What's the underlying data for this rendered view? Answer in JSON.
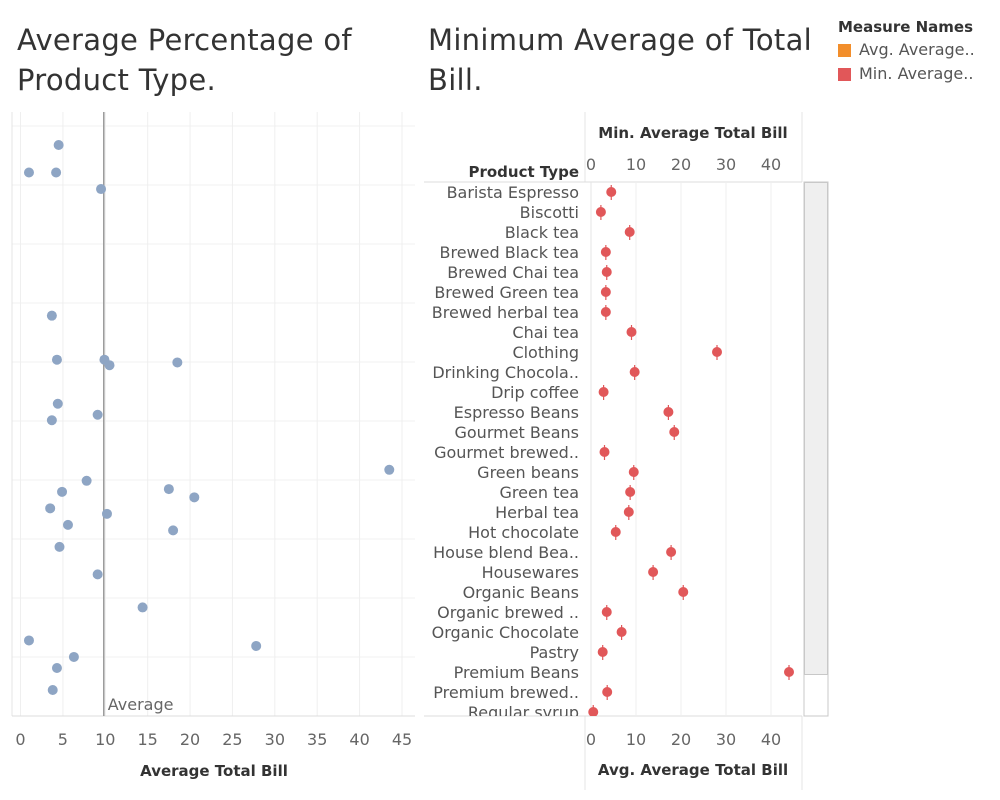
{
  "left_title": "Average Percentage of Product Type.",
  "right_title": "Minimum Average of Total Bill.",
  "legend": {
    "title": "Measure Names",
    "items": [
      {
        "label": "Avg. Average..",
        "color": "#f28e2b"
      },
      {
        "label": "Min. Average..",
        "color": "#e15759"
      }
    ]
  },
  "chart_data": [
    {
      "type": "scatter",
      "title": "Average Percentage of Product Type.",
      "xlabel": "Average Total Bill",
      "xlim": [
        0,
        46
      ],
      "xticks": [
        0,
        5,
        10,
        15,
        20,
        25,
        30,
        35,
        40,
        45
      ],
      "reference_line": {
        "label": "Average",
        "value": 10
      },
      "color": "#8ea5c4",
      "points": [
        {
          "x": 4.5,
          "y": 0.05
        },
        {
          "x": 1.0,
          "y": 0.1
        },
        {
          "x": 4.2,
          "y": 0.1
        },
        {
          "x": 9.5,
          "y": 0.13
        },
        {
          "x": 3.7,
          "y": 0.36
        },
        {
          "x": 4.3,
          "y": 0.44
        },
        {
          "x": 9.9,
          "y": 0.44
        },
        {
          "x": 10.5,
          "y": 0.45
        },
        {
          "x": 18.5,
          "y": 0.445
        },
        {
          "x": 4.4,
          "y": 0.52
        },
        {
          "x": 3.7,
          "y": 0.55
        },
        {
          "x": 9.1,
          "y": 0.54
        },
        {
          "x": 43.5,
          "y": 0.64
        },
        {
          "x": 7.8,
          "y": 0.66
        },
        {
          "x": 4.9,
          "y": 0.68
        },
        {
          "x": 17.5,
          "y": 0.675
        },
        {
          "x": 20.5,
          "y": 0.69
        },
        {
          "x": 3.5,
          "y": 0.71
        },
        {
          "x": 10.2,
          "y": 0.72
        },
        {
          "x": 5.6,
          "y": 0.74
        },
        {
          "x": 18.0,
          "y": 0.75
        },
        {
          "x": 4.6,
          "y": 0.78
        },
        {
          "x": 9.1,
          "y": 0.83
        },
        {
          "x": 14.4,
          "y": 0.89
        },
        {
          "x": 1.0,
          "y": 0.95
        },
        {
          "x": 6.3,
          "y": 0.98
        },
        {
          "x": 27.8,
          "y": 0.96
        },
        {
          "x": 4.3,
          "y": 1.0
        },
        {
          "x": 3.8,
          "y": 1.04
        }
      ]
    },
    {
      "type": "scatter",
      "title": "Minimum Average of Total Bill.",
      "ylabel": "Product Type",
      "x_top_label": "Min. Average Total Bill",
      "x_bottom_label": "Avg. Average Total Bill",
      "xlim": [
        0,
        46
      ],
      "xticks": [
        0,
        10,
        20,
        30,
        40
      ],
      "color": "#e15759",
      "categories": [
        "Barista Espresso",
        "Biscotti",
        "Black tea",
        "Brewed Black tea",
        "Brewed Chai tea",
        "Brewed Green tea",
        "Brewed herbal tea",
        "Chai tea",
        "Clothing",
        "Drinking Chocola..",
        "Drip coffee",
        "Espresso Beans",
        "Gourmet Beans",
        "Gourmet brewed..",
        "Green beans",
        "Green tea",
        "Herbal tea",
        "Hot chocolate",
        "House blend Bea..",
        "Housewares",
        "Organic Beans",
        "Organic brewed ..",
        "Organic Chocolate",
        "Pastry",
        "Premium Beans",
        "Premium brewed..",
        "Regular syrup"
      ],
      "values": [
        4.5,
        2.2,
        8.6,
        3.3,
        3.5,
        3.3,
        3.3,
        9.0,
        28.0,
        9.7,
        2.8,
        17.2,
        18.5,
        3.0,
        9.5,
        8.7,
        8.4,
        5.5,
        17.8,
        13.8,
        20.5,
        3.5,
        6.8,
        2.6,
        44.0,
        3.6,
        0.5
      ]
    }
  ]
}
